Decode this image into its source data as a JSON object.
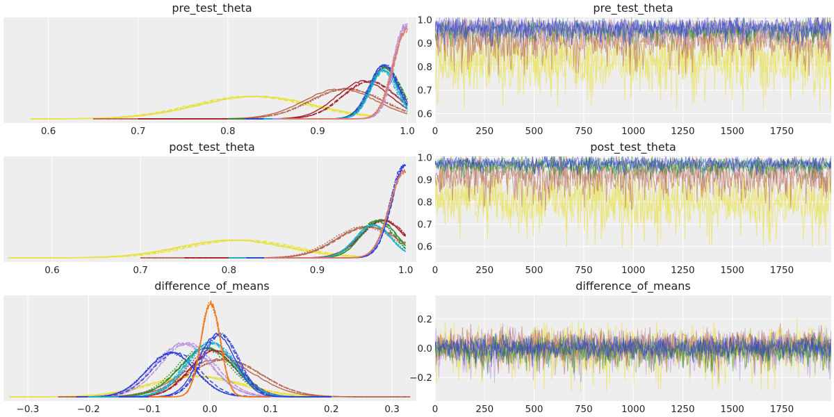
{
  "chart_data": [
    {
      "type": "line",
      "panel": "density",
      "title": "pre_test_theta",
      "xlim": [
        0.55,
        1.01
      ],
      "xticks": [
        0.6,
        0.7,
        0.8,
        0.9,
        1.0
      ],
      "xtick_labels": [
        "0.6",
        "0.7",
        "0.8",
        "0.9",
        "1.0"
      ],
      "show_y_ticks": false,
      "grid": true,
      "series": [
        {
          "color": "#e8e03a",
          "mode": 0.83,
          "sd": 0.065,
          "peak": 0.24,
          "start": 0.58,
          "end": 0.96
        },
        {
          "color": "#b5644f",
          "mode": 0.93,
          "sd": 0.04,
          "peak": 0.32,
          "start": 0.65,
          "end": 1.0
        },
        {
          "color": "#a31f2a",
          "mode": 0.955,
          "sd": 0.03,
          "peak": 0.4,
          "start": 0.7,
          "end": 1.0
        },
        {
          "color": "#2a8c2a",
          "mode": 0.975,
          "sd": 0.017,
          "peak": 0.55,
          "start": 0.8,
          "end": 1.0
        },
        {
          "color": "#2b3fd6",
          "mode": 0.975,
          "sd": 0.016,
          "peak": 0.57,
          "start": 0.82,
          "end": 1.0
        },
        {
          "color": "#1fb0d0",
          "mode": 0.973,
          "sd": 0.015,
          "peak": 0.52,
          "start": 0.84,
          "end": 1.0
        },
        {
          "color": "#b690e0",
          "mode": 0.999,
          "sd": 0.014,
          "peak": 1.0,
          "start": 0.85,
          "end": 1.0
        },
        {
          "color": "#e07a5f",
          "mode": 0.999,
          "sd": 0.015,
          "peak": 0.95,
          "start": 0.86,
          "end": 1.0
        }
      ]
    },
    {
      "type": "line",
      "panel": "trace",
      "title": "pre_test_theta",
      "xlim": [
        0,
        1999
      ],
      "ylim": [
        0.56,
        1.01
      ],
      "xticks": [
        0,
        250,
        500,
        750,
        1000,
        1250,
        1500,
        1750
      ],
      "xtick_labels": [
        "0",
        "250",
        "500",
        "750",
        "1000",
        "1250",
        "1500",
        "1750"
      ],
      "yticks": [
        0.6,
        0.7,
        0.8,
        0.9,
        1.0
      ],
      "ytick_labels": [
        "0.6",
        "0.7",
        "0.8",
        "0.9",
        "1.0"
      ],
      "grid": true,
      "bands": [
        {
          "color": "#e8e03a",
          "center": 0.83,
          "half": 0.11
        },
        {
          "color": "#b5644f",
          "center": 0.92,
          "half": 0.08
        },
        {
          "color": "#2a8c2a",
          "center": 0.96,
          "half": 0.04
        },
        {
          "color": "#b690e0",
          "center": 0.97,
          "half": 0.035
        },
        {
          "color": "#2b3fd6",
          "center": 0.965,
          "half": 0.04
        }
      ]
    },
    {
      "type": "line",
      "panel": "density",
      "title": "post_test_theta",
      "xlim": [
        0.545,
        1.012
      ],
      "xticks": [
        0.6,
        0.7,
        0.8,
        0.9,
        1.0
      ],
      "xtick_labels": [
        "0.6",
        "0.7",
        "0.8",
        "0.9",
        "1.0"
      ],
      "show_y_ticks": false,
      "grid": true,
      "series": [
        {
          "color": "#e8e03a",
          "mode": 0.81,
          "sd": 0.06,
          "peak": 0.19,
          "start": 0.55,
          "end": 0.95
        },
        {
          "color": "#b5644f",
          "mode": 0.955,
          "sd": 0.035,
          "peak": 0.33,
          "start": 0.7,
          "end": 1.0
        },
        {
          "color": "#a31f2a",
          "mode": 0.975,
          "sd": 0.025,
          "peak": 0.4,
          "start": 0.75,
          "end": 1.0
        },
        {
          "color": "#2a8c2a",
          "mode": 0.968,
          "sd": 0.02,
          "peak": 0.4,
          "start": 0.8,
          "end": 1.0
        },
        {
          "color": "#1fb0d0",
          "mode": 0.965,
          "sd": 0.02,
          "peak": 0.35,
          "start": 0.8,
          "end": 1.0
        },
        {
          "color": "#2b3fd6",
          "mode": 0.999,
          "sd": 0.016,
          "peak": 1.0,
          "start": 0.82,
          "end": 1.0
        },
        {
          "color": "#e07a5f",
          "mode": 0.999,
          "sd": 0.017,
          "peak": 0.92,
          "start": 0.84,
          "end": 1.0
        }
      ]
    },
    {
      "type": "line",
      "panel": "trace",
      "title": "post_test_theta",
      "xlim": [
        0,
        1999
      ],
      "ylim": [
        0.53,
        1.005
      ],
      "xticks": [
        0,
        250,
        500,
        750,
        1000,
        1250,
        1500,
        1750
      ],
      "xtick_labels": [
        "0",
        "250",
        "500",
        "750",
        "1000",
        "1250",
        "1500",
        "1750"
      ],
      "yticks": [
        0.6,
        0.7,
        0.8,
        0.9,
        1.0
      ],
      "ytick_labels": [
        "0.6",
        "0.7",
        "0.8",
        "0.9",
        "1.0"
      ],
      "grid": true,
      "bands": [
        {
          "color": "#e8e03a",
          "center": 0.81,
          "half": 0.11
        },
        {
          "color": "#b5644f",
          "center": 0.92,
          "half": 0.08
        },
        {
          "color": "#2a8c2a",
          "center": 0.965,
          "half": 0.035
        },
        {
          "color": "#2b3fd6",
          "center": 0.975,
          "half": 0.028
        }
      ]
    },
    {
      "type": "line",
      "panel": "density",
      "title": "difference_of_means",
      "xlim": [
        -0.34,
        0.34
      ],
      "xticks": [
        -0.3,
        -0.2,
        -0.1,
        0.0,
        0.1,
        0.2,
        0.3
      ],
      "xtick_labels": [
        "−0.3",
        "−0.2",
        "−0.1",
        "0.0",
        "0.1",
        "0.2",
        "0.3"
      ],
      "show_y_ticks": false,
      "grid": true,
      "series": [
        {
          "color": "#e8e03a",
          "mode": -0.02,
          "sd": 0.075,
          "peak": 0.22,
          "start": -0.33,
          "end": 0.25
        },
        {
          "color": "#b5644f",
          "mode": 0.02,
          "sd": 0.06,
          "peak": 0.4,
          "start": -0.25,
          "end": 0.33
        },
        {
          "color": "#2a8c2a",
          "mode": -0.01,
          "sd": 0.045,
          "peak": 0.52,
          "start": -0.2,
          "end": 0.2
        },
        {
          "color": "#a31f2a",
          "mode": 0.005,
          "sd": 0.04,
          "peak": 0.5,
          "start": -0.18,
          "end": 0.2
        },
        {
          "color": "#b690e0",
          "mode": -0.04,
          "sd": 0.045,
          "peak": 0.57,
          "start": -0.2,
          "end": 0.15
        },
        {
          "color": "#2b3fd6",
          "mode": -0.06,
          "sd": 0.04,
          "peak": 0.47,
          "start": -0.22,
          "end": 0.1
        },
        {
          "color": "#1fb0d0",
          "mode": 0.0,
          "sd": 0.04,
          "peak": 0.58,
          "start": -0.2,
          "end": 0.2
        },
        {
          "color": "#2b3fd6",
          "mode": 0.015,
          "sd": 0.03,
          "peak": 0.67,
          "start": -0.15,
          "end": 0.2
        },
        {
          "color": "#f07818",
          "mode": 0.0,
          "sd": 0.016,
          "peak": 1.0,
          "start": -0.1,
          "end": 0.1
        }
      ]
    },
    {
      "type": "line",
      "panel": "trace",
      "title": "difference_of_means",
      "xlim": [
        0,
        1999
      ],
      "ylim": [
        -0.36,
        0.36
      ],
      "xticks": [
        0,
        250,
        500,
        750,
        1000,
        1250,
        1500,
        1750
      ],
      "xtick_labels": [
        "0",
        "250",
        "500",
        "750",
        "1000",
        "1250",
        "1500",
        "1750"
      ],
      "yticks": [
        -0.2,
        0.0,
        0.2
      ],
      "ytick_labels": [
        "−0.2",
        "0.0",
        "0.2"
      ],
      "grid": true,
      "bands": [
        {
          "color": "#e8e03a",
          "center": 0.0,
          "half": 0.15
        },
        {
          "color": "#b690e0",
          "center": 0.0,
          "half": 0.12
        },
        {
          "color": "#b5644f",
          "center": 0.02,
          "half": 0.1
        },
        {
          "color": "#2a8c2a",
          "center": -0.01,
          "half": 0.08
        },
        {
          "color": "#2b3fd6",
          "center": 0.01,
          "half": 0.07
        }
      ]
    }
  ]
}
